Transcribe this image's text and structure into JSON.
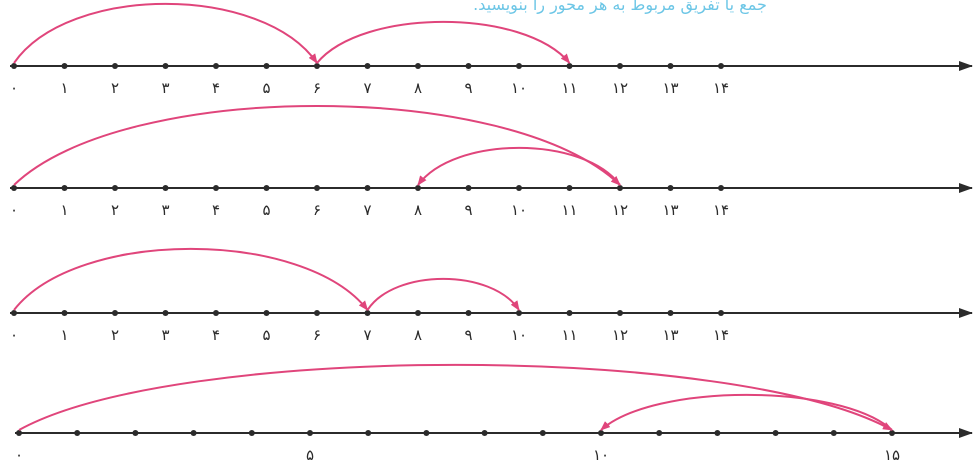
{
  "instruction": "جمع یا تفریق مربوط به هر محور را بنویسید.",
  "colors": {
    "axis": "#2b2b2b",
    "arc": "#e0457b",
    "instruction": "#6cc6e6"
  },
  "lines": [
    {
      "id": "line-1",
      "tick_labels": [
        "۰",
        "۱",
        "۲",
        "۳",
        "۴",
        "۵",
        "۶",
        "۷",
        "۸",
        "۹",
        "۱۰",
        "۱۱",
        "۱۲",
        "۱۳",
        "۱۴"
      ],
      "jumps": [
        {
          "from": 0,
          "to": 6
        },
        {
          "from": 6,
          "to": 11
        }
      ]
    },
    {
      "id": "line-2",
      "tick_labels": [
        "۰",
        "۱",
        "۲",
        "۳",
        "۴",
        "۵",
        "۶",
        "۷",
        "۸",
        "۹",
        "۱۰",
        "۱۱",
        "۱۲",
        "۱۳",
        "۱۴"
      ],
      "jumps": [
        {
          "from": 0,
          "to": 12
        },
        {
          "from": 12,
          "to": 8
        }
      ]
    },
    {
      "id": "line-3",
      "tick_labels": [
        "۰",
        "۱",
        "۲",
        "۳",
        "۴",
        "۵",
        "۶",
        "۷",
        "۸",
        "۹",
        "۱۰",
        "۱۱",
        "۱۲",
        "۱۳",
        "۱۴"
      ],
      "jumps": [
        {
          "from": 0,
          "to": 7
        },
        {
          "from": 7,
          "to": 10
        }
      ]
    },
    {
      "id": "line-4",
      "tick_labels": [
        "۰",
        "",
        "",
        "",
        "",
        "۵",
        "",
        "",
        "",
        "",
        "۱۰",
        "",
        "",
        "",
        "",
        "۱۵"
      ],
      "jumps": [
        {
          "from": 0,
          "to": 15
        },
        {
          "from": 15,
          "to": 10
        }
      ]
    }
  ]
}
